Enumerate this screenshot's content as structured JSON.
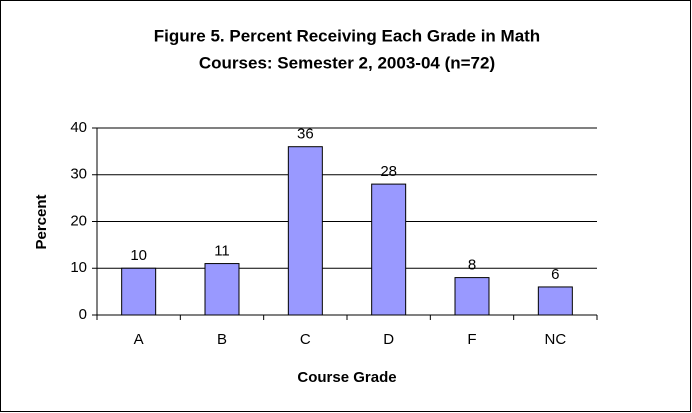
{
  "chart_data": {
    "type": "bar",
    "title": [
      "Figure 5. Percent Receiving Each Grade in Math",
      "Courses: Semester 2, 2003-04 (n=72)"
    ],
    "x_label": "Course Grade",
    "y_label": "Percent",
    "categories": [
      "A",
      "B",
      "C",
      "D",
      "F",
      "NC"
    ],
    "values": [
      10,
      11,
      36,
      28,
      8,
      6
    ],
    "color": "#9999ff",
    "ylim": [
      0,
      40
    ],
    "yticks": [
      0,
      10,
      20,
      30,
      40
    ],
    "grid": true
  }
}
